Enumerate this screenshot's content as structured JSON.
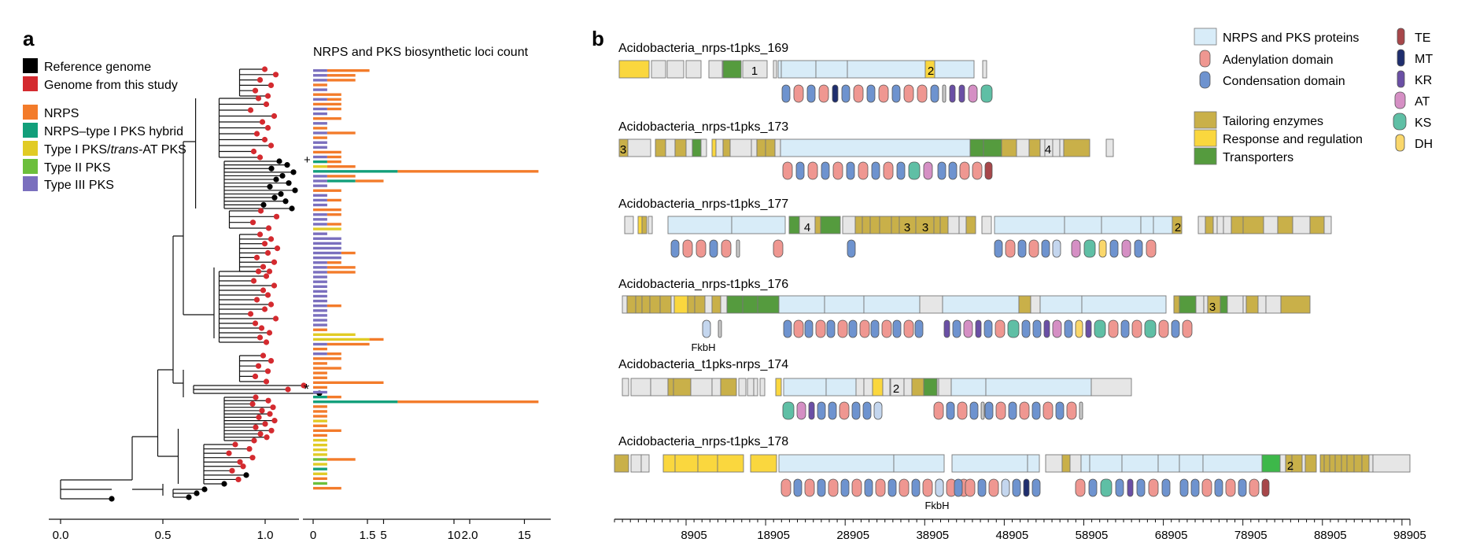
{
  "panel_a": {
    "label": "a",
    "legend": [
      {
        "label": "Reference genome",
        "color": "#000000"
      },
      {
        "label": "Genome from this study",
        "color": "#d42a2f"
      },
      {
        "label": "NRPS",
        "color": "#f37b2a"
      },
      {
        "label": "NRPS–type I PKS hybrid",
        "color": "#129f7a"
      },
      {
        "label_pre": "Type I PKS/",
        "label_italic": "trans",
        "label_post": "-AT PKS",
        "color": "#e1cb24"
      },
      {
        "label": "Type II PKS",
        "color": "#6cbf3c"
      },
      {
        "label": "Type III PKS",
        "color": "#7a6fbe"
      }
    ],
    "tree_axis_ticks": [
      "0.0",
      "0.5",
      "1.0",
      "1.5",
      "2.0"
    ],
    "chart_title": "NRPS and PKS biosynthetic loci count",
    "bar_axis_ticks": [
      "0",
      "5",
      "10",
      "15"
    ],
    "markers": {
      "plus": "+",
      "star": "*"
    }
  },
  "chart_data": {
    "type": "bar",
    "title": "NRPS and PKS biosynthetic loci count",
    "orientation": "horizontal-stacked",
    "xlim": [
      0,
      16
    ],
    "series_colors": {
      "NRPS": "#f37b2a",
      "Hybrid": "#129f7a",
      "TypeI": "#e1cb24",
      "TypeII": "#6cbf3c",
      "TypeIII": "#7a6fbe"
    },
    "rows": [
      {
        "NRPS": 3,
        "TypeIII": 1
      },
      {
        "NRPS": 2,
        "TypeIII": 1
      },
      {
        "NRPS": 2,
        "TypeIII": 1
      },
      {
        "NRPS": 1
      },
      {
        "TypeIII": 1
      },
      {
        "NRPS": 2
      },
      {
        "TypeIII": 1,
        "NRPS": 1
      },
      {
        "NRPS": 2
      },
      {
        "TypeIII": 1,
        "NRPS": 1
      },
      {
        "TypeIII": 1
      },
      {
        "NRPS": 2
      },
      {
        "TypeIII": 1
      },
      {
        "NRPS": 1
      },
      {
        "TypeIII": 1,
        "NRPS": 2
      },
      {
        "NRPS": 1
      },
      {
        "TypeIII": 1
      },
      {
        "TypeIII": 1
      },
      {
        "NRPS": 2
      },
      {
        "TypeIII": 1,
        "NRPS": 1
      },
      {
        "Hybrid": 1,
        "NRPS": 1
      },
      {
        "TypeI": 1,
        "NRPS": 2
      },
      {
        "Hybrid": 6,
        "NRPS": 10
      },
      {
        "TypeIII": 1,
        "NRPS": 2
      },
      {
        "TypeIII": 1,
        "Hybrid": 2,
        "NRPS": 2
      },
      {
        "TypeIII": 1
      },
      {
        "NRPS": 2
      },
      {
        "TypeIII": 1
      },
      {
        "TypeIII": 1,
        "NRPS": 1
      },
      {
        "TypeIII": 1
      },
      {
        "NRPS": 2
      },
      {
        "TypeIII": 1,
        "NRPS": 1
      },
      {
        "TypeIII": 1
      },
      {
        "TypeIII": 1,
        "NRPS": 1
      },
      {
        "TypeI": 2
      },
      {
        "TypeIII": 1
      },
      {
        "TypeIII": 2
      },
      {
        "TypeIII": 2
      },
      {
        "TypeIII": 2
      },
      {
        "TypeIII": 2,
        "NRPS": 1
      },
      {
        "TypeIII": 2
      },
      {
        "TypeIII": 1,
        "NRPS": 1
      },
      {
        "TypeIII": 1,
        "NRPS": 2
      },
      {
        "TypeIII": 1,
        "NRPS": 2
      },
      {
        "TypeIII": 1
      },
      {
        "TypeIII": 1
      },
      {
        "TypeIII": 1
      },
      {
        "TypeIII": 1
      },
      {
        "TypeIII": 1
      },
      {
        "TypeIII": 1
      },
      {
        "TypeIII": 1,
        "NRPS": 1
      },
      {
        "TypeIII": 1
      },
      {
        "TypeIII": 1
      },
      {
        "TypeIII": 1
      },
      {
        "TypeIII": 1
      },
      {
        "NRPS": 1
      },
      {
        "TypeI": 3
      },
      {
        "NRPS": 1,
        "TypeI": 4
      },
      {
        "TypeIII": 1,
        "NRPS": 3
      },
      {
        "NRPS": 1
      },
      {
        "TypeIII": 1,
        "NRPS": 1
      },
      {
        "NRPS": 2
      },
      {
        "NRPS": 1
      },
      {
        "NRPS": 2
      },
      {
        "NRPS": 1
      },
      {
        "NRPS": 1
      },
      {
        "NRPS": 5
      },
      {
        "NRPS": 1
      },
      {
        "TypeIII": 1
      },
      {
        "Hybrid": 1,
        "NRPS": 1
      },
      {
        "Hybrid": 6,
        "NRPS": 10
      },
      {
        "NRPS": 1
      },
      {
        "NRPS": 1
      },
      {
        "NRPS": 1
      },
      {
        "TypeI": 1
      },
      {
        "NRPS": 1
      },
      {
        "NRPS": 2
      },
      {
        "NRPS": 1
      },
      {
        "TypeI": 1
      },
      {
        "TypeI": 1
      },
      {
        "TypeI": 1
      },
      {
        "TypeI": 1
      },
      {
        "TypeII": 1,
        "NRPS": 2
      },
      {
        "TypeI": 1
      },
      {
        "Hybrid": 1
      },
      {
        "TypeI": 1
      },
      {
        "NRPS": 1
      },
      {
        "TypeII": 1
      },
      {
        "NRPS": 2
      }
    ]
  },
  "panel_b": {
    "label": "b",
    "clusters": [
      {
        "name": "Acidobacteria_nrps-t1pks_169",
        "numbers": [
          "1",
          "2"
        ]
      },
      {
        "name": "Acidobacteria_nrps-t1pks_173",
        "numbers": [
          "3",
          "4"
        ]
      },
      {
        "name": "Acidobacteria_nrps-t1pks_177",
        "numbers": [
          "4",
          "3",
          "3",
          "2"
        ]
      },
      {
        "name": "Acidobacteria_nrps-t1pks_176",
        "numbers": [
          "3"
        ],
        "note": "FkbH"
      },
      {
        "name": "Acidobacteria_t1pks-nrps_174",
        "numbers": [
          "2"
        ]
      },
      {
        "name": "Acidobacteria_nrps-t1pks_178",
        "numbers": [
          "2"
        ],
        "note": "FkbH"
      }
    ],
    "legend_genes": [
      {
        "label": "NRPS and PKS proteins",
        "color": "#d8ecf8"
      },
      {
        "label": "Tailoring enzymes",
        "color": "#c9b049"
      },
      {
        "label": "Response and regulation",
        "color": "#fad73e"
      },
      {
        "label": "Transporters",
        "color": "#559b3e"
      }
    ],
    "legend_domains": [
      {
        "label": "Adenylation domain",
        "color": "#ef9791"
      },
      {
        "label": "Condensation domain",
        "color": "#6e93cf"
      },
      {
        "label": "TE",
        "color": "#a7474a"
      },
      {
        "label": "MT",
        "color": "#1f2e6e"
      },
      {
        "label": "KR",
        "color": "#6a4fa5"
      },
      {
        "label": "AT",
        "color": "#d58fc4"
      },
      {
        "label": "KS",
        "color": "#5fbfa5"
      },
      {
        "label": "DH",
        "color": "#fad76b"
      }
    ],
    "axis_ticks": [
      "8905",
      "18905",
      "28905",
      "38905",
      "48905",
      "58905",
      "68905",
      "78905",
      "88905",
      "98905"
    ]
  }
}
